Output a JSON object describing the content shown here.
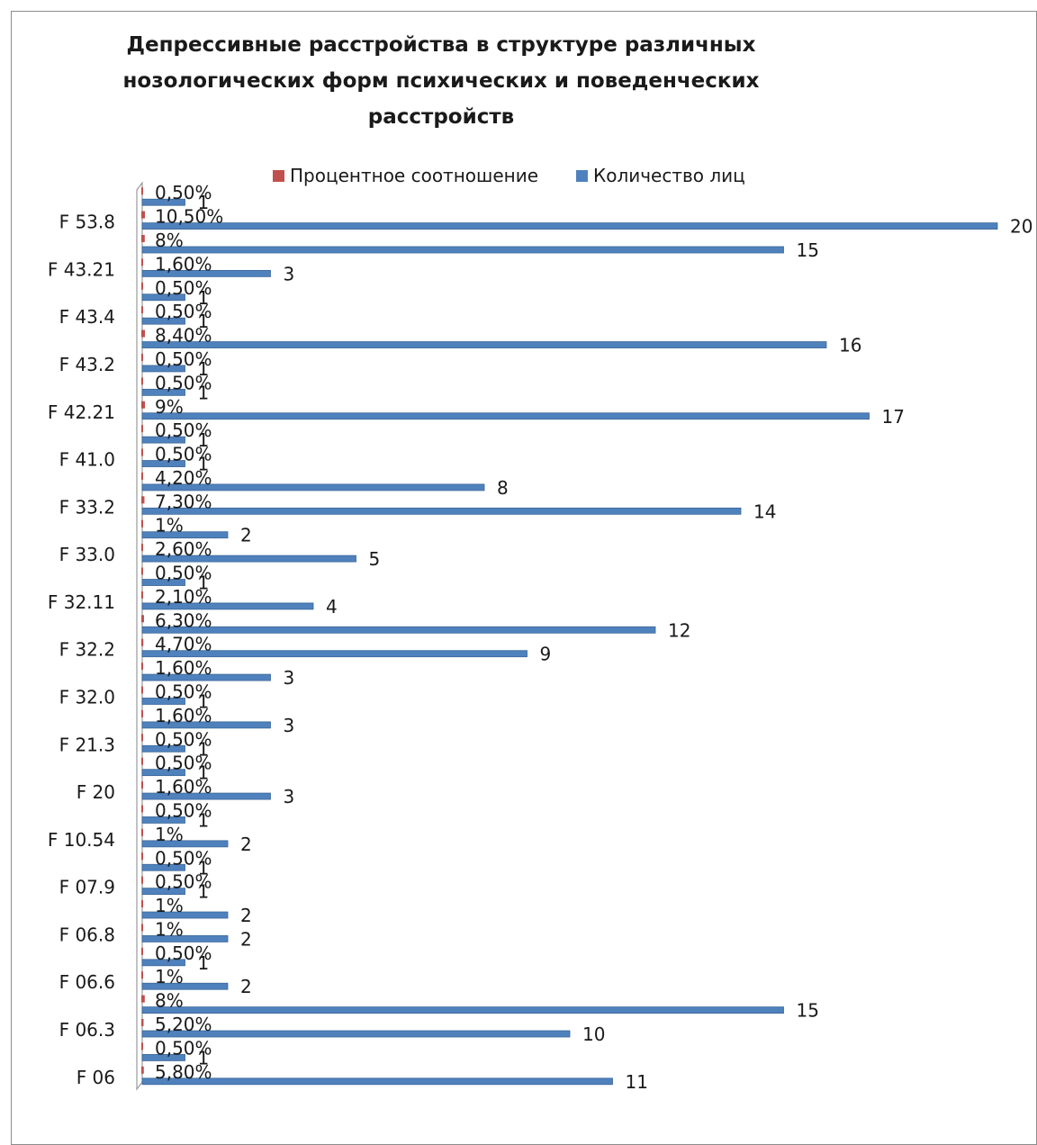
{
  "chart_data": {
    "type": "bar",
    "orientation": "horizontal",
    "title": "Депрессивные расстройства в структуре различных нозологических форм психических и поведенческих расстройств",
    "title_lines": [
      "Депрессивные расстройства в структуре различных",
      "нозологических форм психических и поведенческих",
      "расстройств"
    ],
    "legend_position": "top",
    "grid": false,
    "xlim": [
      0,
      20
    ],
    "category_tick_labels": [
      "F 06",
      "F 06.3",
      "F 06.6",
      "F 06.8",
      "F 07.9",
      "F 10.54",
      "F 20",
      "F 21.3",
      "F 32.0",
      "F 32.2",
      "F 32.11",
      "F 33.0",
      "F 33.2",
      "F 41.0",
      "F 42.21",
      "F 43.2",
      "F 43.4",
      "F 43.21",
      "F 53.8"
    ],
    "series": [
      {
        "name": "Процентное соотношение",
        "color": "#c0504d",
        "values": [
          5.8,
          0.5,
          5.2,
          8,
          1,
          0.5,
          1,
          1,
          0.5,
          0.5,
          1,
          0.5,
          1.6,
          0.5,
          0.5,
          1.6,
          0.5,
          1.6,
          4.7,
          6.3,
          2.1,
          0.5,
          2.6,
          1,
          7.3,
          4.2,
          0.5,
          0.5,
          9,
          0.5,
          0.5,
          8.4,
          0.5,
          0.5,
          1.6,
          8,
          10.5,
          0.5
        ],
        "labels": [
          "5,80%",
          "0,50%",
          "5,20%",
          "8%",
          "1%",
          "0,50%",
          "1%",
          "1%",
          "0,50%",
          "0,50%",
          "1%",
          "0,50%",
          "1,60%",
          "0,50%",
          "0,50%",
          "1,60%",
          "0,50%",
          "1,60%",
          "4,70%",
          "6,30%",
          "2,10%",
          "0,50%",
          "2,60%",
          "1%",
          "7,30%",
          "4,20%",
          "0,50%",
          "0,50%",
          "9%",
          "0,50%",
          "0,50%",
          "8,40%",
          "0,50%",
          "0,50%",
          "1,60%",
          "8%",
          "10,50%",
          "0,50%"
        ]
      },
      {
        "name": "Количество лиц",
        "color": "#4f81bd",
        "values": [
          11,
          1,
          10,
          15,
          2,
          1,
          2,
          2,
          1,
          1,
          2,
          1,
          3,
          1,
          1,
          3,
          1,
          3,
          9,
          12,
          4,
          1,
          5,
          2,
          14,
          8,
          1,
          1,
          17,
          1,
          1,
          16,
          1,
          1,
          3,
          15,
          20,
          1
        ],
        "labels": [
          "11",
          "1",
          "10",
          "15",
          "2",
          "1",
          "2",
          "2",
          "1",
          "1",
          "2",
          "1",
          "3",
          "1",
          "1",
          "3",
          "1",
          "3",
          "9",
          "12",
          "4",
          "1",
          "5",
          "2",
          "14",
          "8",
          "1",
          "1",
          "17",
          "1",
          "1",
          "16",
          "1",
          "1",
          "3",
          "15",
          "20",
          "1"
        ]
      }
    ]
  }
}
